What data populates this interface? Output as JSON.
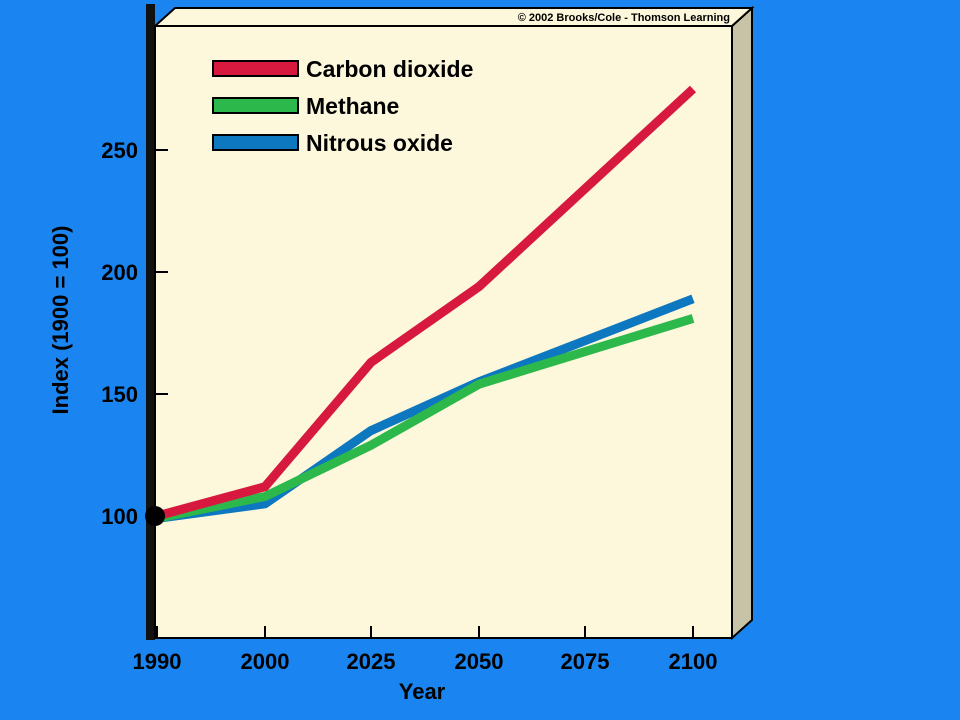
{
  "copyright": "© 2002 Brooks/Cole - Thomson Learning",
  "chart_data": {
    "type": "line",
    "title": "",
    "xlabel": "Year",
    "ylabel": "Index (1900 = 100)",
    "categories": [
      "1990",
      "2000",
      "2025",
      "2050",
      "2075",
      "2100"
    ],
    "y_ticks": [
      "100",
      "150",
      "200",
      "250"
    ],
    "ylim": [
      50,
      300
    ],
    "legend_position": "top-left",
    "start_marker": {
      "x": "1990",
      "y": 100
    },
    "series": [
      {
        "name": "Carbon dioxide",
        "color": "#d7193f",
        "values": [
          100,
          112,
          163,
          194,
          null,
          275
        ]
      },
      {
        "name": "Methane",
        "color": "#2cb84a",
        "values": [
          99,
          108,
          129,
          154,
          null,
          181
        ]
      },
      {
        "name": "Nitrous oxide",
        "color": "#0d78c0",
        "values": [
          99,
          105,
          135,
          155,
          null,
          189
        ]
      }
    ]
  }
}
